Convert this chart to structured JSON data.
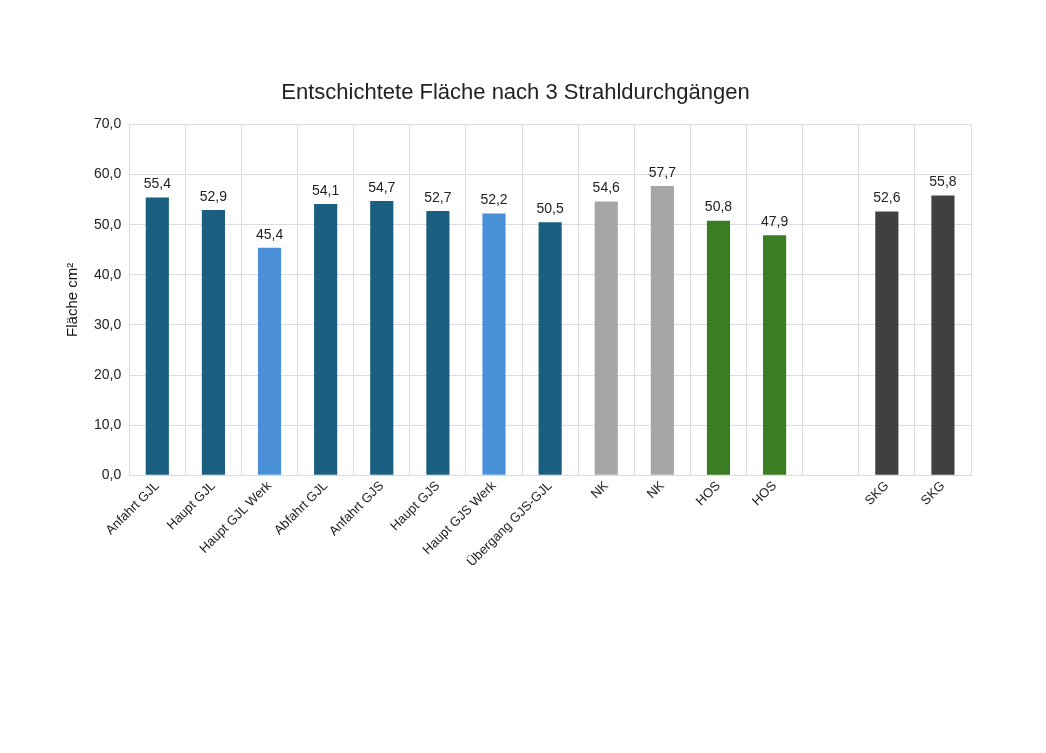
{
  "chart_data": {
    "type": "bar",
    "title": "Entschichtete Fläche nach 3 Strahldurchgängen",
    "ylabel": "Fläche cm²",
    "categories": [
      "Anfahrt GJL",
      "Haupt GJL",
      "Haupt GJL Werk",
      "Abfahrt GJL",
      "Anfahrt GJS",
      "Haupt GJS",
      "Haupt GJS Werk",
      "Übergang GJS-GJL",
      "NK",
      "NK",
      "HOS",
      "HOS",
      null,
      "SKG",
      "SKG"
    ],
    "values": [
      55.4,
      52.9,
      45.4,
      54.1,
      54.7,
      52.7,
      52.2,
      50.5,
      54.6,
      57.7,
      50.8,
      47.9,
      null,
      52.6,
      55.8
    ],
    "colors": [
      "#1a5f80",
      "#1a5f80",
      "#4a90d9",
      "#1a5f80",
      "#1a5f80",
      "#1a5f80",
      "#4a90d9",
      "#1a5f80",
      "#a6a6a6",
      "#a6a6a6",
      "#3a7d22",
      "#3a7d22",
      "#ffffff",
      "#404040",
      "#404040"
    ],
    "value_labels": [
      "55,4",
      "52,9",
      "45,4",
      "54,1",
      "54,7",
      "52,7",
      "52,2",
      "50,5",
      "54,6",
      "57,7",
      "50,8",
      "47,9",
      null,
      "52,6",
      "55,8"
    ],
    "ylim": [
      0,
      70
    ],
    "yticks": [
      {
        "value": 0,
        "label": "0,0"
      },
      {
        "value": 10,
        "label": "10,0"
      },
      {
        "value": 20,
        "label": "20,0"
      },
      {
        "value": 30,
        "label": "30,0"
      },
      {
        "value": 40,
        "label": "40,0"
      },
      {
        "value": 50,
        "label": "50,0"
      },
      {
        "value": 60,
        "label": "60,0"
      },
      {
        "value": 70,
        "label": "70,0"
      }
    ],
    "grid": true
  }
}
